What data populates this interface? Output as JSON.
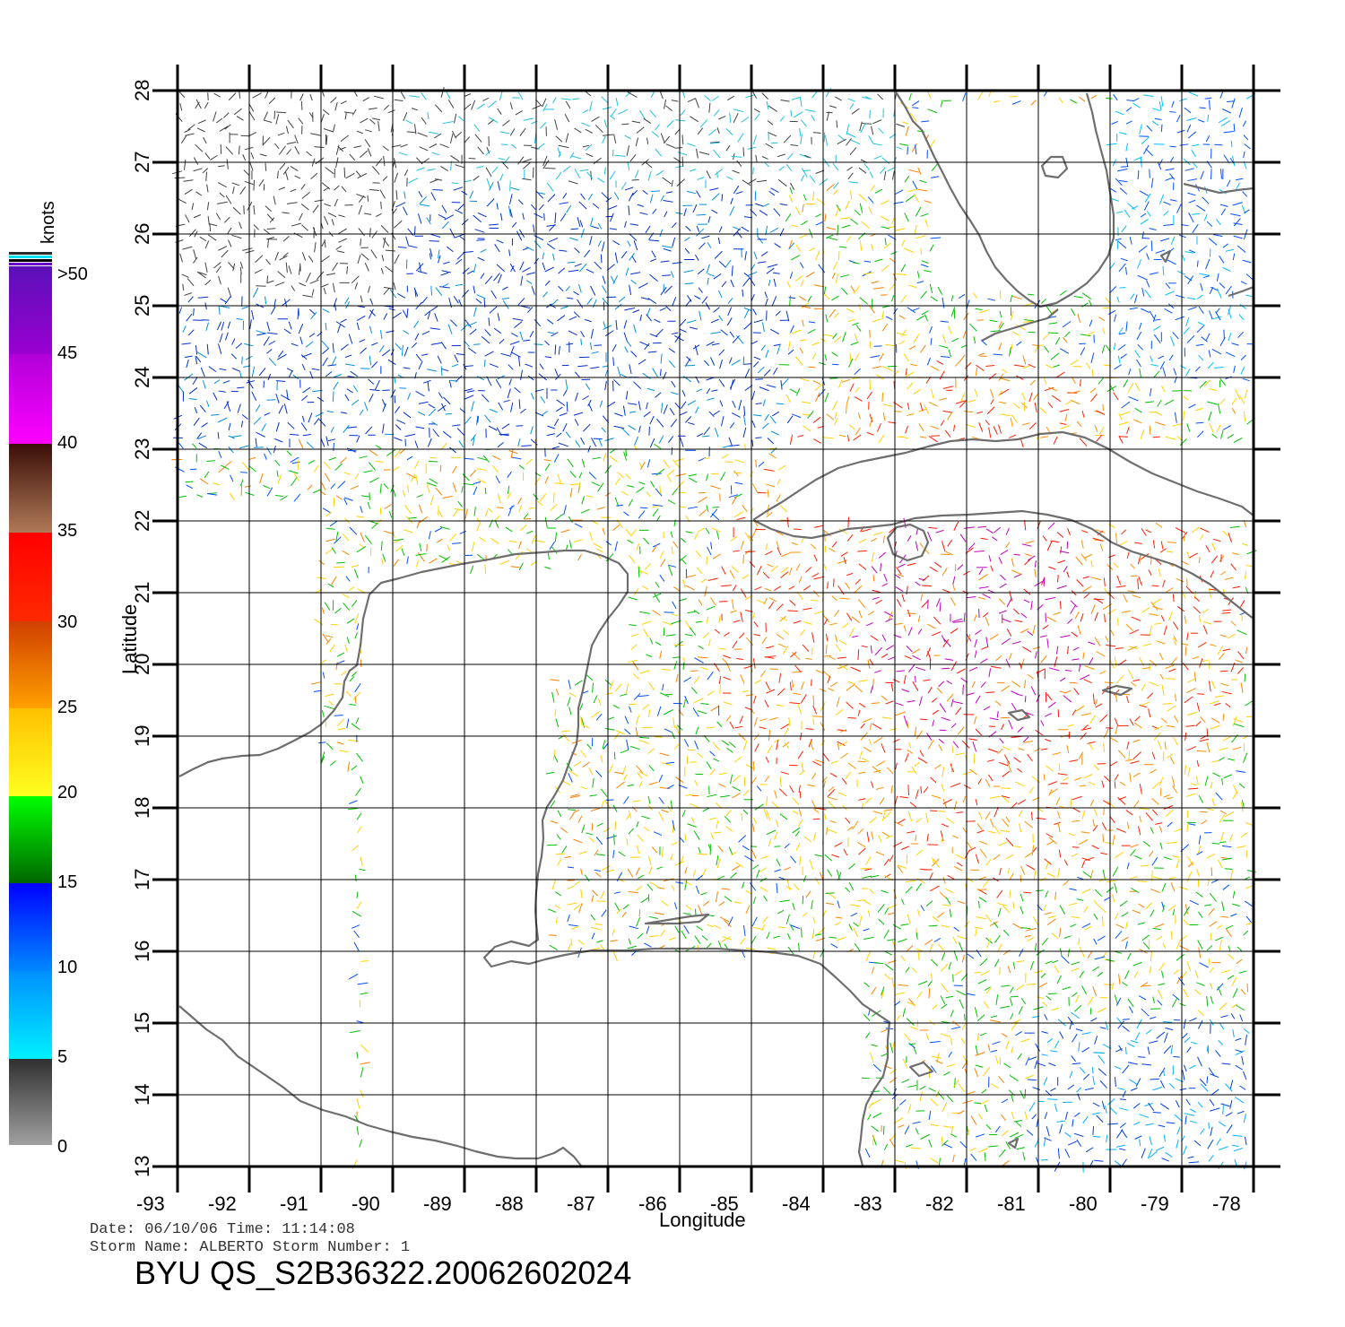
{
  "plot": {
    "lon_range": [
      -93,
      -78
    ],
    "lat_range": [
      13,
      28
    ],
    "lon_ticks": [
      "-93",
      "-92",
      "-91",
      "-90",
      "-89",
      "-88",
      "-87",
      "-86",
      "-85",
      "-84",
      "-83",
      "-82",
      "-81",
      "-80",
      "-79",
      "-78"
    ],
    "lat_ticks": [
      "13",
      "14",
      "15",
      "16",
      "17",
      "18",
      "19",
      "20",
      "21",
      "22",
      "23",
      "24",
      "25",
      "26",
      "27",
      "28"
    ],
    "xlabel": "Longitude",
    "ylabel": "Latitude",
    "grid": true
  },
  "legend": {
    "unit_label": "knots",
    "labels": [
      ">50",
      "45",
      "40",
      "35",
      "30",
      "25",
      "20",
      "15",
      "10",
      "5",
      "0"
    ],
    "colors": [
      "#ffffff",
      "#6a00c8",
      "#ff00ff",
      "#4a1a10",
      "#ff0000",
      "#ff8800",
      "#ffff00",
      "#00cc00",
      "#0000ff",
      "#00e0ff",
      "#808080"
    ]
  },
  "footer": {
    "date_line": "Date: 06/10/06   Time: 11:14:08",
    "storm_line": "Storm  Name: ALBERTO   Storm  Number: 1",
    "product_id": "BYU  QS_S2B36322.20062602024"
  },
  "colors": {
    "grid": "#000000",
    "coastline": "#6e6e6e",
    "background": "#ffffff"
  }
}
